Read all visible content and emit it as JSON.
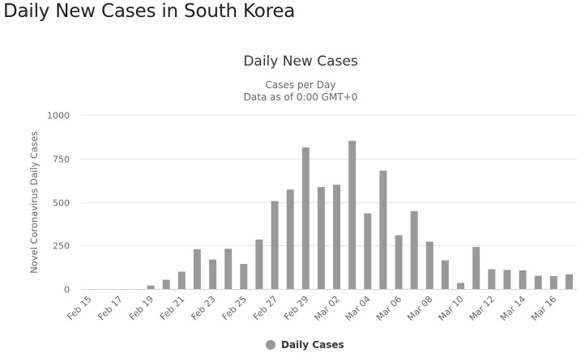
{
  "page": {
    "title": "Daily New Cases in South Korea"
  },
  "chart": {
    "title": "Daily New Cases",
    "subtitle_line1": "Cases per Day",
    "subtitle_line2": "Data as of 0:00 GMT+0",
    "y_axis_title": "Novel Coronavirus Daily Cases",
    "y_ticks": [
      "0",
      "250",
      "500",
      "750",
      "1000"
    ],
    "x_tick_labels": [
      "Feb 15",
      "Feb 17",
      "Feb 19",
      "Feb 21",
      "Feb 23",
      "Feb 25",
      "Feb 27",
      "Feb 29",
      "Mar 02",
      "Mar 04",
      "Mar 06",
      "Mar 08",
      "Mar 10",
      "Mar 12",
      "Mar 14",
      "Mar 16"
    ],
    "legend": {
      "label": "Daily Cases",
      "color": "#999999"
    },
    "colors": {
      "bar": "#999999",
      "grid": "#e6e6e6",
      "axis_line": "#ccd6eb"
    }
  },
  "chart_data": {
    "type": "bar",
    "title": "Daily New Cases",
    "subtitle": "Cases per Day / Data as of 0:00 GMT+0",
    "xlabel": "",
    "ylabel": "Novel Coronavirus Daily Cases",
    "ylim": [
      0,
      1000
    ],
    "yticks": [
      0,
      250,
      500,
      750,
      1000
    ],
    "grid": true,
    "legend_position": "bottom-center",
    "categories": [
      "Feb 15",
      "Feb 16",
      "Feb 17",
      "Feb 18",
      "Feb 19",
      "Feb 20",
      "Feb 21",
      "Feb 22",
      "Feb 23",
      "Feb 24",
      "Feb 25",
      "Feb 26",
      "Feb 27",
      "Feb 28",
      "Feb 29",
      "Mar 01",
      "Mar 02",
      "Mar 03",
      "Mar 04",
      "Mar 05",
      "Mar 06",
      "Mar 07",
      "Mar 08",
      "Mar 09",
      "Mar 10",
      "Mar 11",
      "Mar 12",
      "Mar 13",
      "Mar 14",
      "Mar 15",
      "Mar 16",
      "Mar 17"
    ],
    "series": [
      {
        "name": "Daily Cases",
        "values": [
          0,
          0,
          0,
          0,
          20,
          53,
          100,
          229,
          169,
          231,
          144,
          284,
          505,
          571,
          813,
          586,
          599,
          851,
          435,
          680,
          309,
          448,
          272,
          165,
          35,
          242,
          114,
          110,
          107,
          76,
          74,
          84
        ]
      }
    ]
  }
}
